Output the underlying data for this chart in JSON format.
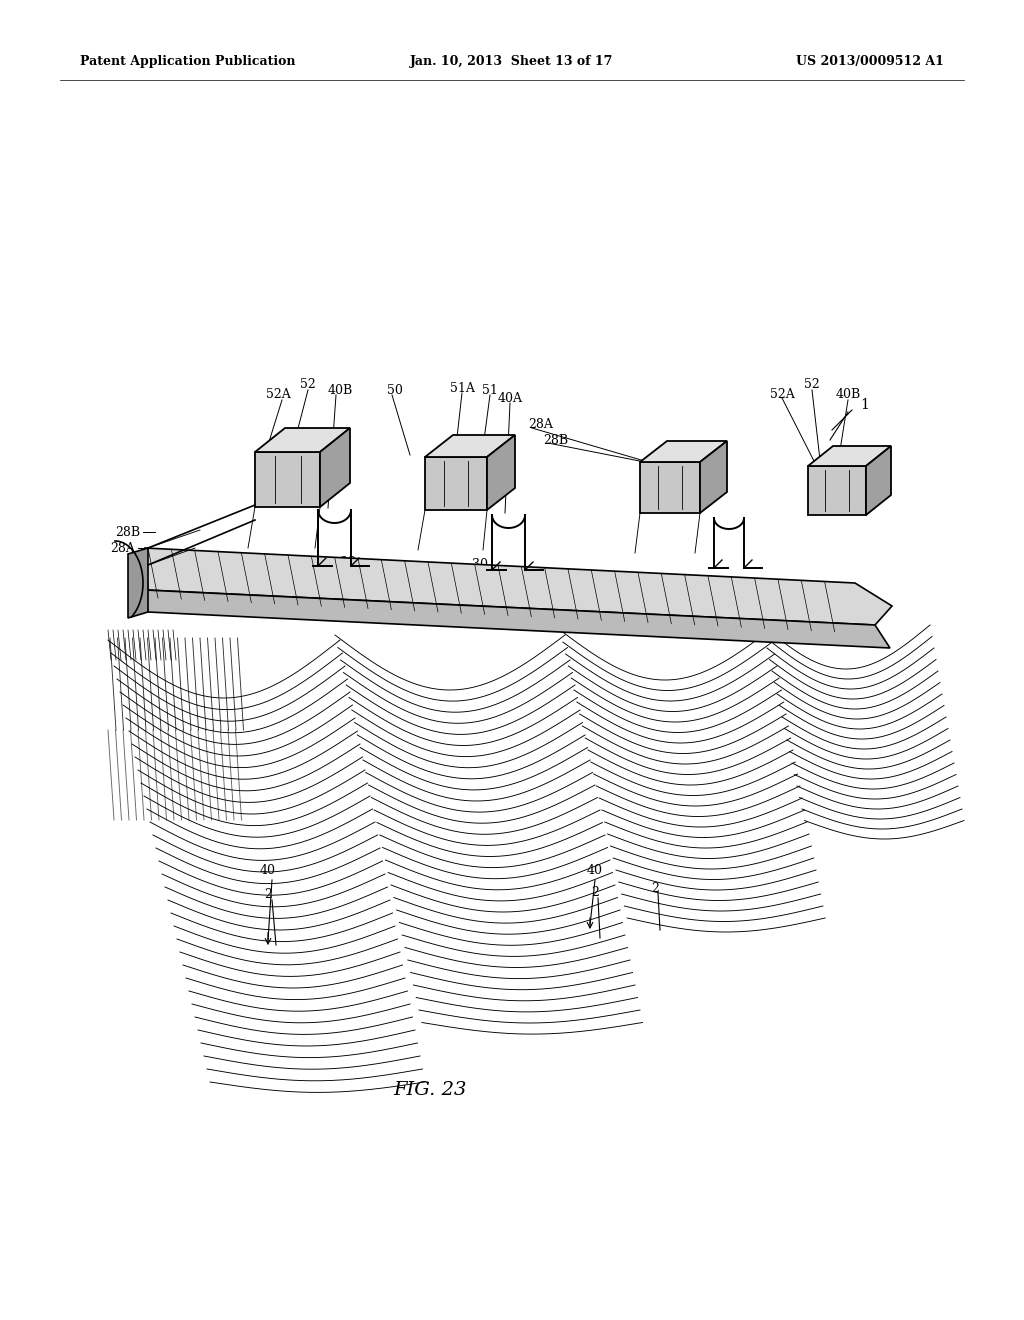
{
  "background_color": "#ffffff",
  "header_left": "Patent Application Publication",
  "header_center": "Jan. 10, 2013  Sheet 13 of 17",
  "header_right": "US 2013/0009512 A1",
  "figure_label": "FIG. 23",
  "line_color": "#000000",
  "lw_main": 1.2,
  "lw_thin": 0.65,
  "face_light": "#d8d8d8",
  "face_mid": "#bbbbbb",
  "face_dark": "#999999",
  "header_fontsize": 9,
  "title_fontsize": 14,
  "label_fontsize": 9
}
